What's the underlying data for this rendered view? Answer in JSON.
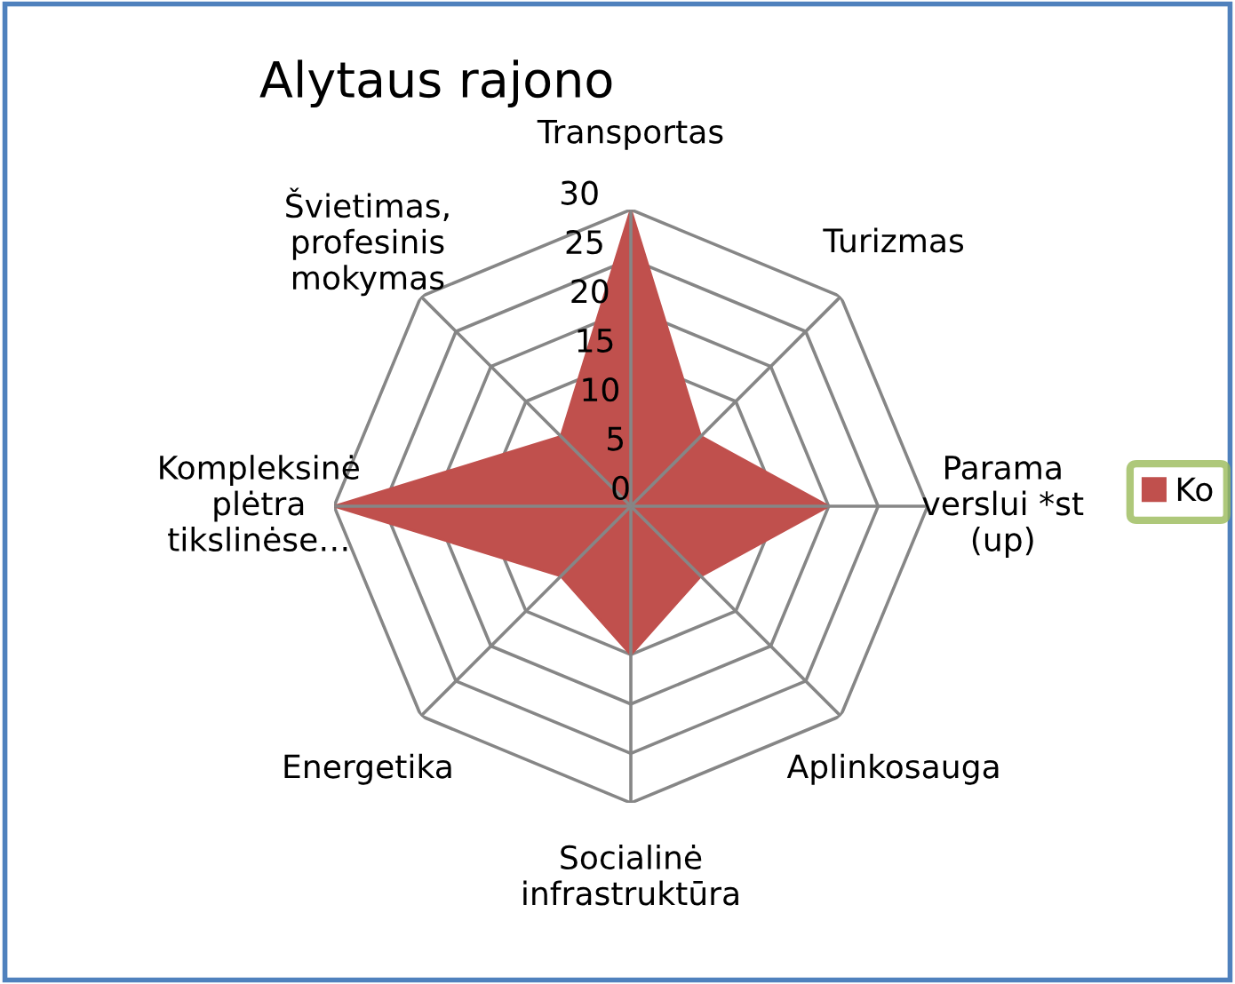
{
  "chart_data": {
    "type": "radar",
    "title": "Alytaus rajono",
    "categories": [
      "Transportas",
      "Turizmas",
      "Parama\nverslui *st\n(up)",
      "Aplinkosauga",
      "Socialinė\ninfrastruktūra",
      "Energetika",
      "Kompleksinė\nplėtra\ntikslinėse…",
      "Švietimas,\nprofesinis\nmokymas"
    ],
    "series": [
      {
        "name": "Ko",
        "color": "#c0504d",
        "values": [
          30,
          10,
          20,
          10,
          15,
          10,
          30,
          10
        ]
      }
    ],
    "ylim": [
      0,
      30
    ],
    "yticks": [
      0,
      5,
      10,
      15,
      20,
      25,
      30
    ],
    "grid": true,
    "legend": "right"
  }
}
